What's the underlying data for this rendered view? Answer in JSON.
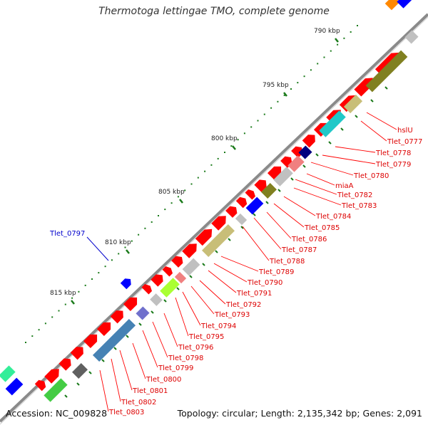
{
  "title": "Thermotoga lettingae TMO, complete genome",
  "footer": {
    "accession": "Accession: NC_009828",
    "summary": "Topology: circular; Length: 2,135,342 bp; Genes: 2,091"
  },
  "ticks": [
    "790 kbp",
    "795 kbp",
    "800 kbp",
    "805 kbp",
    "810 kbp",
    "815 kbp"
  ],
  "highlight_label": "Tlet_0797",
  "gene_labels": [
    "hslU",
    "Tlet_0777",
    "Tlet_0778",
    "Tlet_0779",
    "Tlet_0780",
    "miaA",
    "Tlet_0782",
    "Tlet_0783",
    "Tlet_0784",
    "Tlet_0785",
    "Tlet_0786",
    "Tlet_0787",
    "Tlet_0788",
    "Tlet_0789",
    "Tlet_0790",
    "Tlet_0791",
    "Tlet_0792",
    "Tlet_0793",
    "Tlet_0794",
    "Tlet_0795",
    "Tlet_0796",
    "Tlet_0798",
    "Tlet_0799",
    "Tlet_0800",
    "Tlet_0801",
    "Tlet_0802",
    "Tlet_0803"
  ],
  "colors": {
    "cds": "#ff0000",
    "backbone": "#8a8a8a",
    "tick": "#1a7a1a",
    "label_line": "#ff0000",
    "highlight": "#0000cc",
    "cog_olive": "#808020",
    "cog_khaki": "#c8be78",
    "cog_cyan": "#20c8c8",
    "cog_steel": "#4682b4",
    "cog_gray": "#c0c0c0",
    "cog_pink": "#f08080",
    "cog_blue": "#0000ff",
    "cog_lime": "#aaff33",
    "cog_green": "#44cc44",
    "cog_navy": "#000080",
    "cog_slate": "#7070cc"
  }
}
